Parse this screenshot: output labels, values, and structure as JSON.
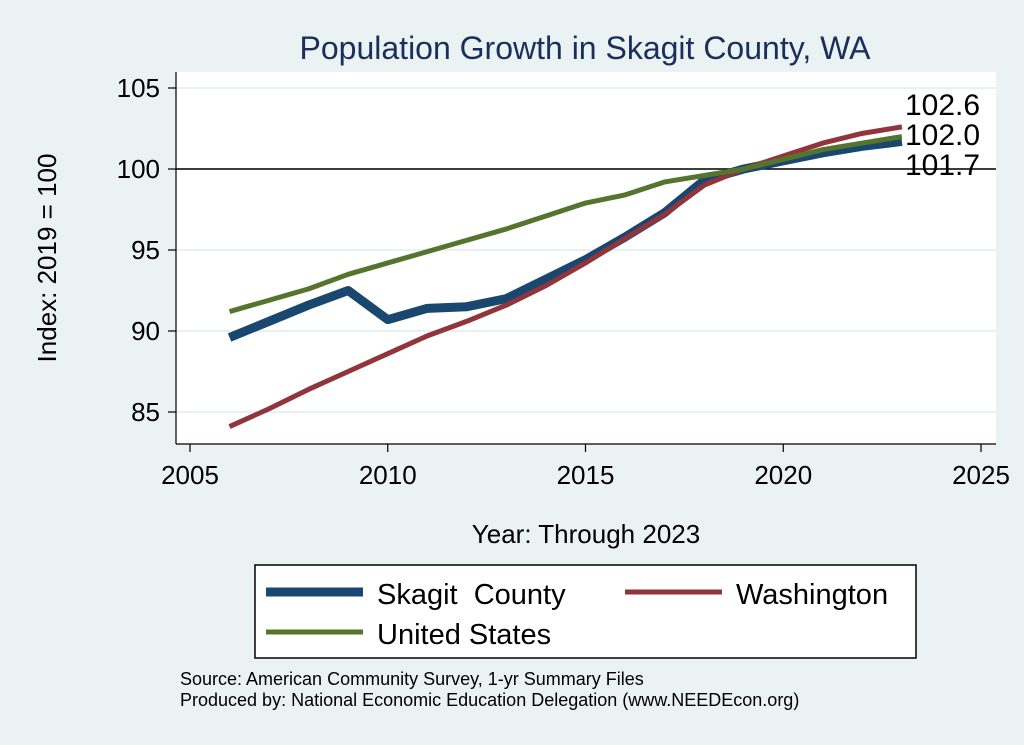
{
  "chart_data": {
    "type": "line",
    "title": "Population Growth in Skagit County, WA",
    "xlabel": "Year: Through 2023",
    "ylabel": "Index: 2019 = 100",
    "xlim": [
      2005,
      2025
    ],
    "ylim": [
      83,
      106
    ],
    "xticks": [
      2005,
      2010,
      2015,
      2020,
      2025
    ],
    "yticks": [
      85,
      90,
      95,
      100,
      105
    ],
    "reference_line": 100,
    "x": [
      2006,
      2007,
      2008,
      2009,
      2010,
      2011,
      2012,
      2013,
      2014,
      2015,
      2016,
      2017,
      2018,
      2019,
      2020,
      2021,
      2022,
      2023
    ],
    "series": [
      {
        "name": "Skagit  County",
        "color": "#1a476f",
        "width": 9,
        "values": [
          89.6,
          90.6,
          91.6,
          92.5,
          90.7,
          91.4,
          91.5,
          92.0,
          93.2,
          94.4,
          95.8,
          97.3,
          99.3,
          100.0,
          100.5,
          101.0,
          101.4,
          101.7
        ]
      },
      {
        "name": "Washington",
        "color": "#90353b",
        "width": 5,
        "values": [
          84.1,
          85.2,
          86.4,
          87.5,
          88.6,
          89.7,
          90.6,
          91.6,
          92.8,
          94.2,
          95.7,
          97.2,
          99.0,
          100.0,
          100.8,
          101.6,
          102.2,
          102.6
        ]
      },
      {
        "name": "United States",
        "color": "#55752f",
        "width": 5,
        "values": [
          91.2,
          91.9,
          92.6,
          93.5,
          94.2,
          94.9,
          95.6,
          96.3,
          97.1,
          97.9,
          98.4,
          99.2,
          99.6,
          100.0,
          100.6,
          101.2,
          101.6,
          102.0
        ]
      }
    ],
    "end_labels": [
      "102.6",
      "102.0",
      "101.7"
    ],
    "legend_position": "bottom",
    "grid": true
  },
  "source_lines": [
    "Source: American Community Survey, 1-yr Summary Files",
    "Produced by: National Economic Education Delegation (www.NEEDEcon.org)"
  ]
}
